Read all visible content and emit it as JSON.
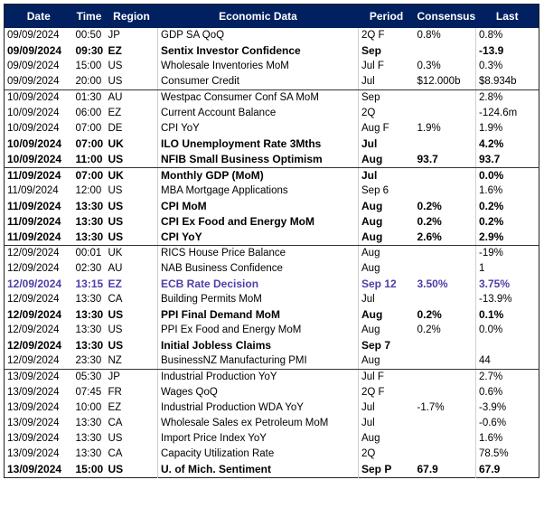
{
  "table": {
    "columns": [
      "Date",
      "Time",
      "Region",
      "Economic Data",
      "Period",
      "Consensus",
      "Last"
    ],
    "rows": [
      {
        "date": "09/09/2024",
        "time": "00:50",
        "region": "JP",
        "data": "GDP SA QoQ",
        "period": "2Q F",
        "consensus": "0.8%",
        "last": "0.8%"
      },
      {
        "date": "09/09/2024",
        "time": "09:30",
        "region": "EZ",
        "data": "Sentix Investor Confidence",
        "period": "Sep",
        "last": "-13.9"
      },
      {
        "date": "09/09/2024",
        "time": "15:00",
        "region": "US",
        "data": "Wholesale Inventories MoM",
        "period": "Jul F",
        "consensus": "0.3%",
        "last": "0.3%"
      },
      {
        "date": "09/09/2024",
        "time": "20:00",
        "region": "US",
        "data": "Consumer Credit",
        "period": "Jul",
        "consensus": "$12.000b",
        "last": "$8.934b"
      },
      {
        "date": "10/09/2024",
        "time": "01:30",
        "region": "AU",
        "data": "Westpac Consumer Conf SA MoM",
        "period": "Sep",
        "last": "2.8%"
      },
      {
        "date": "10/09/2024",
        "time": "06:00",
        "region": "EZ",
        "data": "Current Account Balance",
        "period": "2Q",
        "last": "-124.6m"
      },
      {
        "date": "10/09/2024",
        "time": "07:00",
        "region": "DE",
        "data": "CPI YoY",
        "period": "Aug F",
        "consensus": "1.9%",
        "last": "1.9%"
      },
      {
        "date": "10/09/2024",
        "time": "07:00",
        "region": "UK",
        "data": "ILO Unemployment Rate 3Mths",
        "period": "Jul",
        "last": "4.2%"
      },
      {
        "date": "10/09/2024",
        "time": "11:00",
        "region": "US",
        "data": "NFIB Small Business Optimism",
        "period": "Aug",
        "consensus": "93.7",
        "last": "93.7"
      },
      {
        "date": "11/09/2024",
        "time": "07:00",
        "region": "UK",
        "data": "Monthly GDP (MoM)",
        "period": "Jul",
        "last": "0.0%"
      },
      {
        "date": "11/09/2024",
        "time": "12:00",
        "region": "US",
        "data": "MBA Mortgage Applications",
        "period": "Sep 6",
        "last": "1.6%"
      },
      {
        "date": "11/09/2024",
        "time": "13:30",
        "region": "US",
        "data": "CPI MoM",
        "period": "Aug",
        "consensus": "0.2%",
        "last": "0.2%"
      },
      {
        "date": "11/09/2024",
        "time": "13:30",
        "region": "US",
        "data": "CPI Ex Food and Energy MoM",
        "period": "Aug",
        "consensus": "0.2%",
        "last": "0.2%"
      },
      {
        "date": "11/09/2024",
        "time": "13:30",
        "region": "US",
        "data": "CPI YoY",
        "period": "Aug",
        "consensus": "2.6%",
        "last": "2.9%"
      },
      {
        "date": "12/09/2024",
        "time": "00:01",
        "region": "UK",
        "data": "RICS House Price Balance",
        "period": "Aug",
        "last": "-19%"
      },
      {
        "date": "12/09/2024",
        "time": "02:30",
        "region": "AU",
        "data": "NAB Business Confidence",
        "period": "Aug",
        "last": "1"
      },
      {
        "date": "12/09/2024",
        "time": "13:15",
        "region": "EZ",
        "data": "ECB Rate Decision",
        "period": "Sep 12",
        "consensus": "3.50%",
        "last": "3.75%"
      },
      {
        "date": "12/09/2024",
        "time": "13:30",
        "region": "CA",
        "data": "Building Permits MoM",
        "period": "Jul",
        "last": "-13.9%"
      },
      {
        "date": "12/09/2024",
        "time": "13:30",
        "region": "US",
        "data": "PPI Final Demand MoM",
        "period": "Aug",
        "consensus": "0.2%",
        "last": "0.1%"
      },
      {
        "date": "12/09/2024",
        "time": "13:30",
        "region": "US",
        "data": "PPI Ex Food and Energy MoM",
        "period": "Aug",
        "consensus": "0.2%",
        "last": "0.0%"
      },
      {
        "date": "12/09/2024",
        "time": "13:30",
        "region": "US",
        "data": "Initial Jobless Claims",
        "period": "Sep 7"
      },
      {
        "date": "12/09/2024",
        "time": "23:30",
        "region": "NZ",
        "data": "BusinessNZ Manufacturing PMI",
        "period": "Aug",
        "last": "44"
      },
      {
        "date": "13/09/2024",
        "time": "05:30",
        "region": "JP",
        "data": "Industrial Production YoY",
        "period": "Jul F",
        "last": "2.7%"
      },
      {
        "date": "13/09/2024",
        "time": "07:45",
        "region": "FR",
        "data": "Wages QoQ",
        "period": "2Q F",
        "last": "0.6%"
      },
      {
        "date": "13/09/2024",
        "time": "10:00",
        "region": "EZ",
        "data": "Industrial Production WDA YoY",
        "period": "Jul",
        "consensus": "-1.7%",
        "last": "-3.9%"
      },
      {
        "date": "13/09/2024",
        "time": "13:30",
        "region": "CA",
        "data": "Wholesale Sales ex Petroleum MoM",
        "period": "Jul",
        "last": "-0.6%"
      },
      {
        "date": "13/09/2024",
        "time": "13:30",
        "region": "US",
        "data": "Import Price Index YoY",
        "period": "Aug",
        "last": "1.6%"
      },
      {
        "date": "13/09/2024",
        "time": "13:30",
        "region": "CA",
        "data": "Capacity Utilization Rate",
        "period": "2Q",
        "last": "78.5%"
      },
      {
        "date": "13/09/2024",
        "time": "15:00",
        "region": "US",
        "data": "U. of Mich. Sentiment",
        "period": "Sep P",
        "consensus": "67.9",
        "last": "67.9"
      }
    ]
  }
}
